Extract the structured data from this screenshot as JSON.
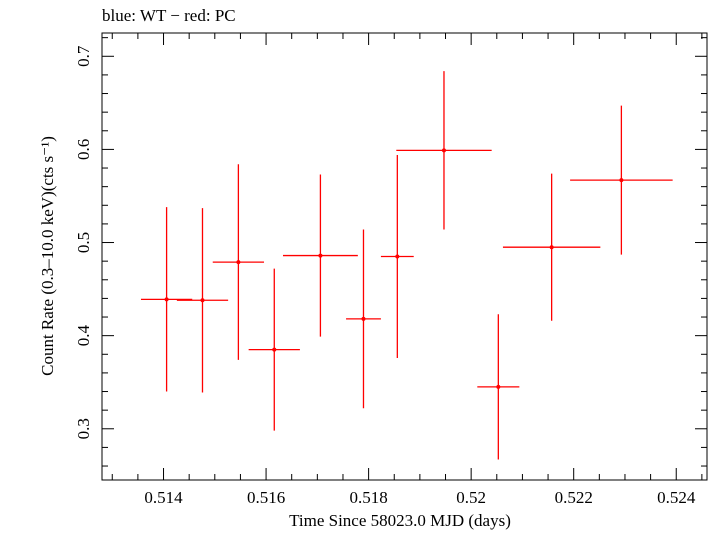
{
  "chart_data": {
    "type": "scatter",
    "subtitle": "blue: WT − red: PC",
    "xlabel": "Time Since 58023.0 MJD (days)",
    "ylabel": "Count Rate (0.3–10.0 keV)(cts s⁻¹)",
    "xlim": [
      0.5128,
      0.5246
    ],
    "ylim": [
      0.245,
      0.725
    ],
    "xticks": [
      0.514,
      0.516,
      0.518,
      0.52,
      0.522,
      0.524
    ],
    "xtick_labels": [
      "0.514",
      "0.516",
      "0.518",
      "0.52",
      "0.522",
      "0.524"
    ],
    "yticks": [
      0.3,
      0.4,
      0.5,
      0.6,
      0.7
    ],
    "ytick_labels": [
      "0.3",
      "0.4",
      "0.5",
      "0.6",
      "0.7"
    ],
    "grid": false,
    "series": [
      {
        "color": "#ff0000",
        "points": [
          {
            "x": 0.51406,
            "xerr": 0.0005,
            "y": 0.439,
            "yerr": 0.099
          },
          {
            "x": 0.51476,
            "xerr": 0.0005,
            "y": 0.438,
            "yerr": 0.099
          },
          {
            "x": 0.51546,
            "xerr": 0.0005,
            "y": 0.479,
            "yerr": 0.105
          },
          {
            "x": 0.51616,
            "xerr": 0.0005,
            "y": 0.385,
            "yerr": 0.087
          },
          {
            "x": 0.51706,
            "xerr": 0.00073,
            "y": 0.486,
            "yerr": 0.087
          },
          {
            "x": 0.5179,
            "xerr": 0.00034,
            "y": 0.418,
            "yerr": 0.096
          },
          {
            "x": 0.51856,
            "xerr": 0.00032,
            "y": 0.485,
            "yerr": 0.109
          },
          {
            "x": 0.51947,
            "xerr": 0.00093,
            "y": 0.599,
            "yerr": 0.085
          },
          {
            "x": 0.52053,
            "xerr": 0.00041,
            "y": 0.345,
            "yerr": 0.078
          },
          {
            "x": 0.52157,
            "xerr": 0.00095,
            "y": 0.495,
            "yerr": 0.079
          },
          {
            "x": 0.52293,
            "xerr": 0.001,
            "y": 0.567,
            "yerr": 0.08
          }
        ]
      }
    ]
  }
}
